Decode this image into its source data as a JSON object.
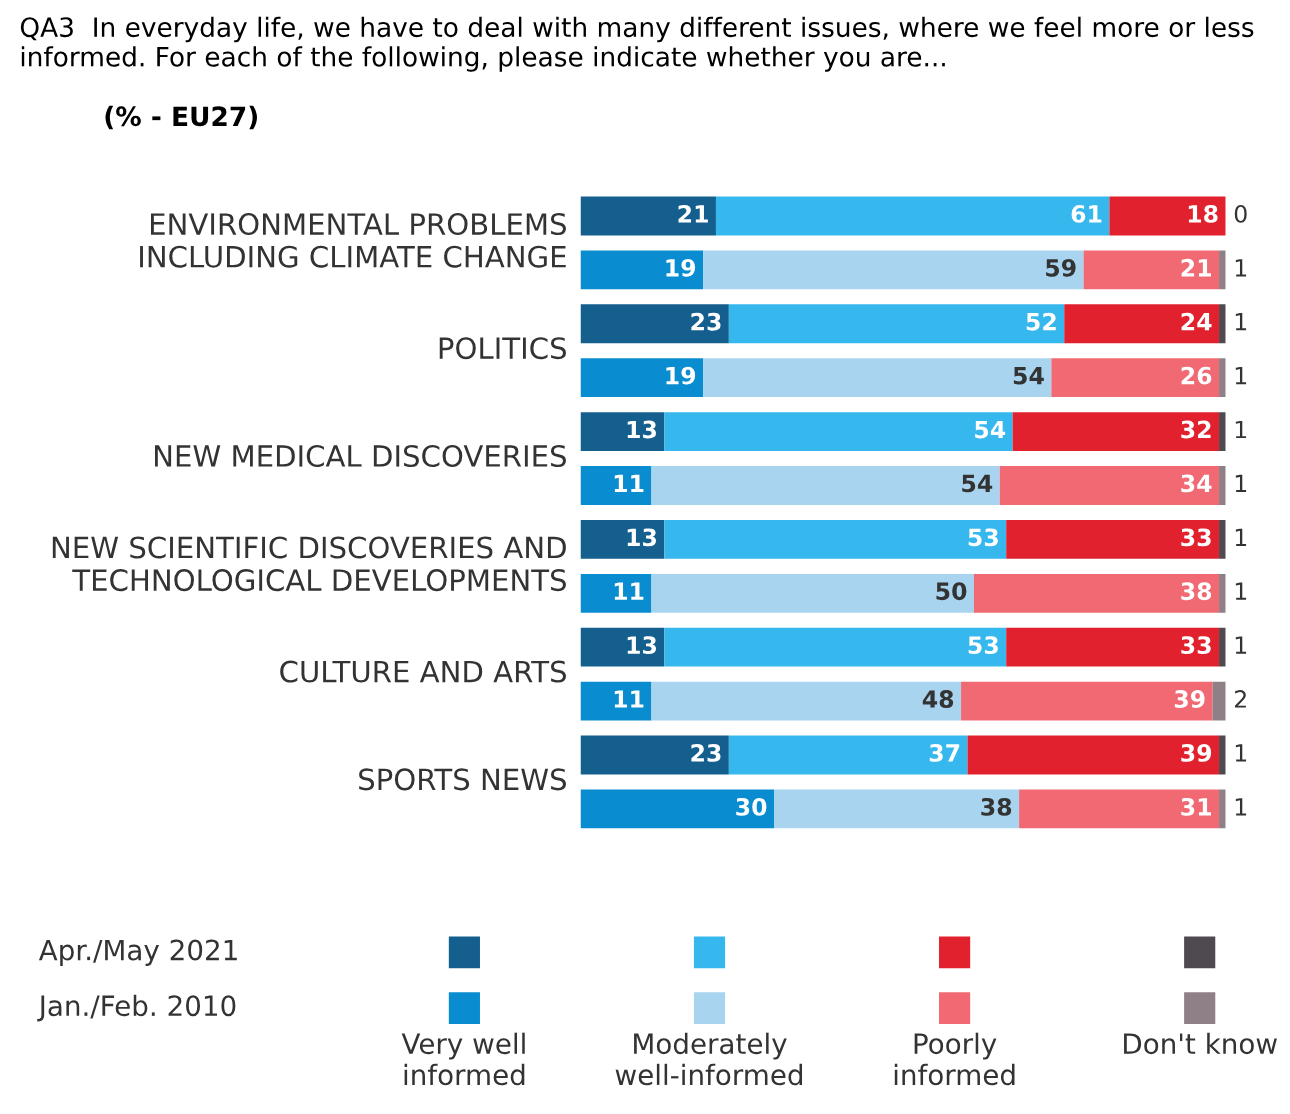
{
  "chart_data": {
    "type": "bar",
    "orientation": "horizontal",
    "stacked": true,
    "data_labels": true,
    "legend": "bottom",
    "title": "QA3  In everyday life, we have to deal with many different issues, where we feel more or less informed. For each of the following, please indicate whether you are...",
    "subtitle": "(% - EU27)",
    "categories": [
      "ENVIRONMENTAL PROBLEMS\nINCLUDING CLIMATE CHANGE",
      null,
      "POLITICS",
      null,
      "NEW MEDICAL DISCOVERIES",
      null,
      "NEW SCIENTIFIC DISCOVERIES AND\nTECHNOLOGICAL DEVELOPMENTS",
      null,
      "CULTURE AND ARTS",
      null,
      "SPORTS NEWS",
      null
    ],
    "annotations": [
      "Apr./May 2021",
      "Jan./Feb. 2010"
    ],
    "series": [
      {
        "name": "Very well\ninformed",
        "colors": [
          "#155f8f",
          "#0a8dd0",
          "#155f8f",
          "#0a8dd0",
          "#155f8f",
          "#0a8dd0",
          "#155f8f",
          "#0a8dd0",
          "#155f8f",
          "#0a8dd0",
          "#155f8f",
          "#0a8dd0"
        ],
        "values": [
          21,
          19,
          23,
          19,
          13,
          11,
          13,
          11,
          13,
          11,
          23,
          30
        ]
      },
      {
        "name": "Moderately\nwell-informed",
        "colors": [
          "#36b7ee",
          "#a9d4f0",
          "#36b7ee",
          "#a9d4f0",
          "#36b7ee",
          "#a9d4f0",
          "#36b7ee",
          "#a9d4f0",
          "#36b7ee",
          "#a9d4f0",
          "#36b7ee",
          "#a9d4f0"
        ],
        "values": [
          61,
          59,
          52,
          54,
          54,
          54,
          53,
          50,
          53,
          48,
          37,
          38
        ]
      },
      {
        "name": "Poorly\ninformed",
        "colors": [
          "#e2212f",
          "#f16a73",
          "#e2212f",
          "#f16a73",
          "#e2212f",
          "#f16a73",
          "#e2212f",
          "#f16a73",
          "#e2212f",
          "#f16a73",
          "#e2212f",
          "#f16a73"
        ],
        "values": [
          18,
          21,
          24,
          26,
          32,
          34,
          33,
          38,
          33,
          39,
          39,
          31
        ]
      },
      {
        "name": "Don't know",
        "colors": [
          "#4e4a50",
          "#8f8088",
          "#4e4a50",
          "#8f8088",
          "#4e4a50",
          "#8f8088",
          "#4e4a50",
          "#8f8088",
          "#4e4a50",
          "#8f8088",
          "#4e4a50",
          "#8f8088"
        ],
        "values": [
          0,
          1,
          1,
          1,
          1,
          1,
          1,
          1,
          1,
          2,
          1,
          1
        ]
      }
    ]
  }
}
